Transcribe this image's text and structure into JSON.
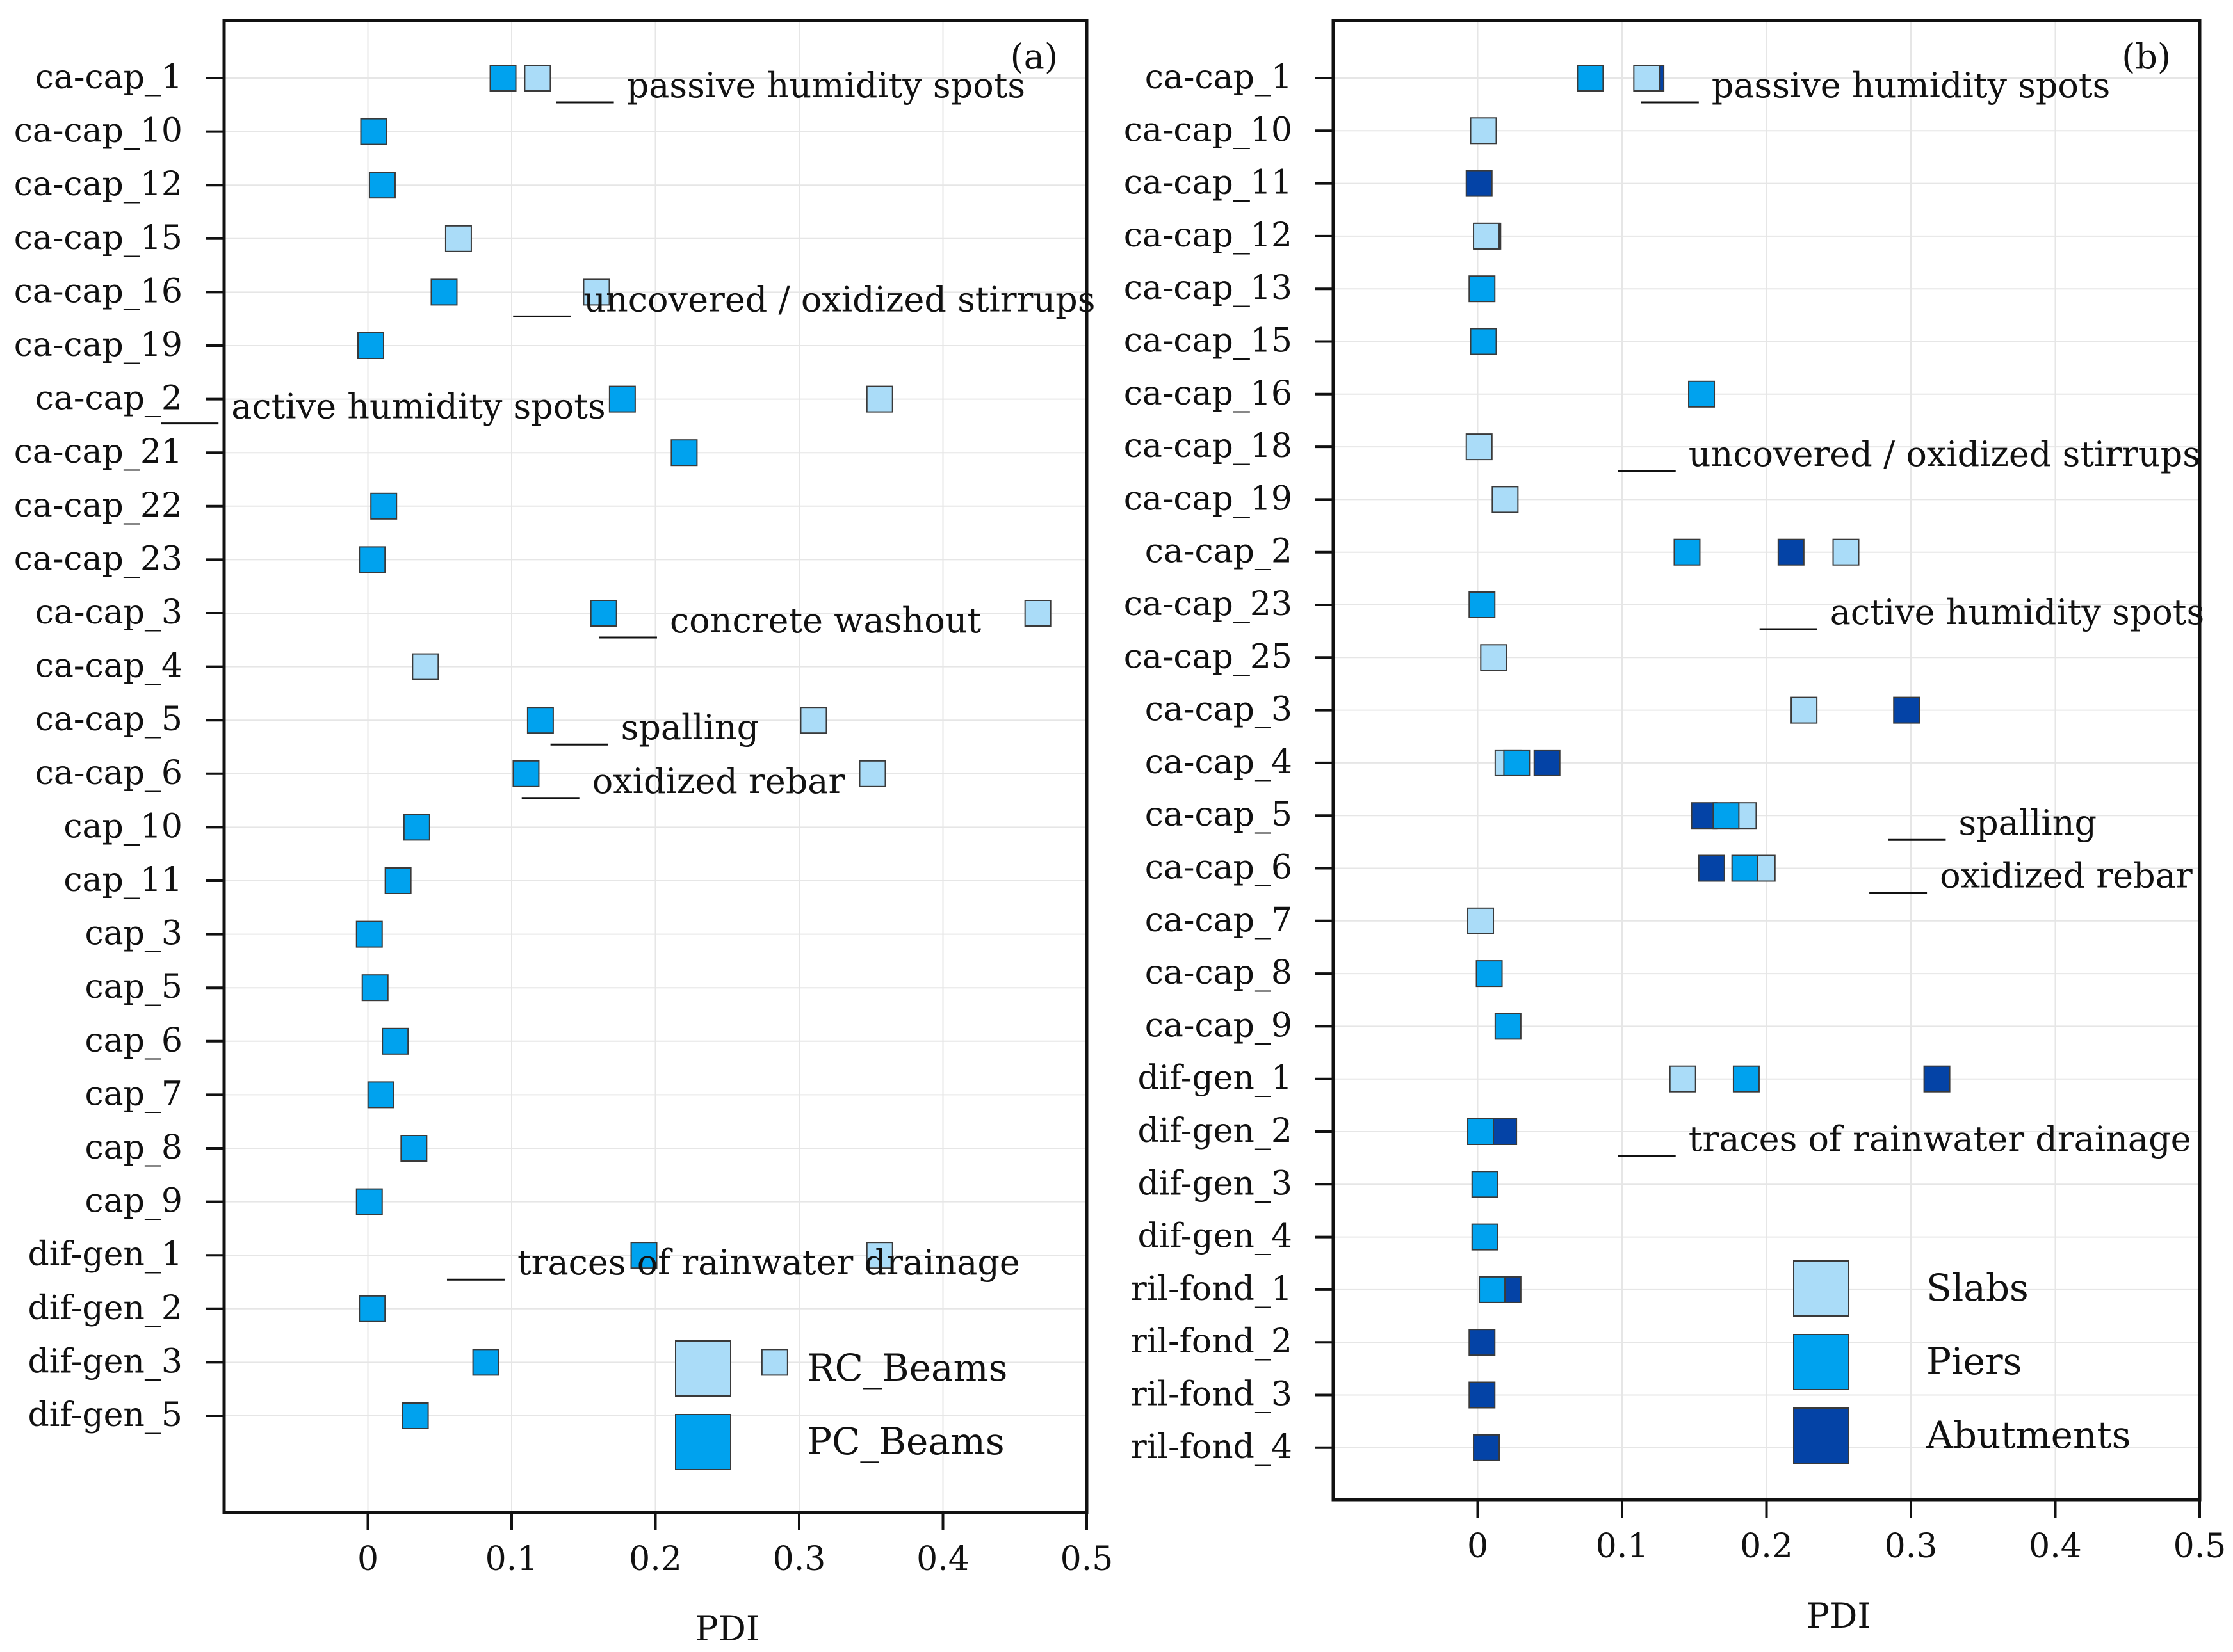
{
  "chart_data": [
    {
      "type": "scatter",
      "panel_label": "(a)",
      "title": "",
      "xlabel": "PDI",
      "ylabel": "",
      "xlim": [
        -0.1,
        0.5
      ],
      "x_ticks": [
        "0",
        "0.1",
        "0.2",
        "0.3",
        "0.4",
        "0.5"
      ],
      "x_tick_values": [
        0,
        0.1,
        0.2,
        0.3,
        0.4,
        0.5
      ],
      "grid": true,
      "legend_position": "bottom-right",
      "colors": {
        "RC_Beams": "#aadcf8",
        "PC_Beams": "#00a2ee"
      },
      "categories": [
        "ca-cap_1",
        "ca-cap_10",
        "ca-cap_12",
        "ca-cap_15",
        "ca-cap_16",
        "ca-cap_19",
        "ca-cap_2",
        "ca-cap_21",
        "ca-cap_22",
        "ca-cap_23",
        "ca-cap_3",
        "ca-cap_4",
        "ca-cap_5",
        "ca-cap_6",
        "cap_10",
        "cap_11",
        "cap_3",
        "cap_5",
        "cap_6",
        "cap_7",
        "cap_8",
        "cap_9",
        "dif-gen_1",
        "dif-gen_2",
        "dif-gen_3",
        "dif-gen_5"
      ],
      "series": [
        {
          "name": "RC_Beams",
          "points": [
            [
              0.118,
              "ca-cap_1"
            ],
            [
              0.063,
              "ca-cap_15"
            ],
            [
              0.159,
              "ca-cap_16"
            ],
            [
              0.356,
              "ca-cap_2"
            ],
            [
              0.466,
              "ca-cap_3"
            ],
            [
              0.04,
              "ca-cap_4"
            ],
            [
              0.31,
              "ca-cap_5"
            ],
            [
              0.351,
              "ca-cap_6"
            ],
            [
              0.356,
              "dif-gen_1"
            ],
            [
              0.283,
              "dif-gen_3"
            ]
          ]
        },
        {
          "name": "PC_Beams",
          "points": [
            [
              0.094,
              "ca-cap_1"
            ],
            [
              0.004,
              "ca-cap_10"
            ],
            [
              0.01,
              "ca-cap_12"
            ],
            [
              0.053,
              "ca-cap_16"
            ],
            [
              0.002,
              "ca-cap_19"
            ],
            [
              0.177,
              "ca-cap_2"
            ],
            [
              0.22,
              "ca-cap_21"
            ],
            [
              0.011,
              "ca-cap_22"
            ],
            [
              0.003,
              "ca-cap_23"
            ],
            [
              0.164,
              "ca-cap_3"
            ],
            [
              0.12,
              "ca-cap_5"
            ],
            [
              0.11,
              "ca-cap_6"
            ],
            [
              0.034,
              "cap_10"
            ],
            [
              0.021,
              "cap_11"
            ],
            [
              0.001,
              "cap_3"
            ],
            [
              0.005,
              "cap_5"
            ],
            [
              0.019,
              "cap_6"
            ],
            [
              0.009,
              "cap_7"
            ],
            [
              0.032,
              "cap_8"
            ],
            [
              0.001,
              "cap_9"
            ],
            [
              0.192,
              "dif-gen_1"
            ],
            [
              0.003,
              "dif-gen_2"
            ],
            [
              0.082,
              "dif-gen_3"
            ],
            [
              0.033,
              "dif-gen_5"
            ]
          ]
        }
      ],
      "annotations": [
        {
          "text": "passive humidity spots",
          "x": 0.18,
          "category": "ca-cap_1"
        },
        {
          "text": "uncovered / oxidized stirrups",
          "x": 0.15,
          "category": "ca-cap_16"
        },
        {
          "text": "active humidity spots",
          "x": -0.095,
          "category": "ca-cap_2"
        },
        {
          "text": "concrete washout",
          "x": 0.21,
          "category": "ca-cap_3"
        },
        {
          "text": "spalling",
          "x": 0.176,
          "category": "ca-cap_5"
        },
        {
          "text": "oxidized rebar",
          "x": 0.156,
          "category": "ca-cap_6"
        },
        {
          "text": "traces of rainwater drainage",
          "x": 0.104,
          "category": "dif-gen_1"
        }
      ]
    },
    {
      "type": "scatter",
      "panel_label": "(b)",
      "title": "",
      "xlabel": "PDI",
      "ylabel": "",
      "xlim": [
        -0.1,
        0.5
      ],
      "x_ticks": [
        "0",
        "0.1",
        "0.2",
        "0.3",
        "0.4",
        "0.5"
      ],
      "x_tick_values": [
        0,
        0.1,
        0.2,
        0.3,
        0.4,
        0.5
      ],
      "grid": true,
      "legend_position": "bottom-right",
      "colors": {
        "Slabs": "#aadcf8",
        "Piers": "#00a2ee",
        "Abutments": "#0443a6"
      },
      "categories": [
        "ca-cap_1",
        "ca-cap_10",
        "ca-cap_11",
        "ca-cap_12",
        "ca-cap_13",
        "ca-cap_15",
        "ca-cap_16",
        "ca-cap_18",
        "ca-cap_19",
        "ca-cap_2",
        "ca-cap_23",
        "ca-cap_25",
        "ca-cap_3",
        "ca-cap_4",
        "ca-cap_5",
        "ca-cap_6",
        "ca-cap_7",
        "ca-cap_8",
        "ca-cap_9",
        "dif-gen_1",
        "dif-gen_2",
        "dif-gen_3",
        "dif-gen_4",
        "ril-fond_1",
        "ril-fond_2",
        "ril-fond_3",
        "ril-fond_4"
      ],
      "series": [
        {
          "name": "Abutments",
          "points": [
            [
              0.12,
              "ca-cap_1"
            ],
            [
              0.001,
              "ca-cap_11"
            ],
            [
              0.007,
              "ca-cap_12"
            ],
            [
              0.217,
              "ca-cap_2"
            ],
            [
              0.297,
              "ca-cap_3"
            ],
            [
              0.048,
              "ca-cap_4"
            ],
            [
              0.157,
              "ca-cap_5"
            ],
            [
              0.162,
              "ca-cap_6"
            ],
            [
              0.318,
              "dif-gen_1"
            ],
            [
              0.018,
              "dif-gen_2"
            ],
            [
              0.021,
              "ril-fond_1"
            ],
            [
              0.003,
              "ril-fond_2"
            ],
            [
              0.003,
              "ril-fond_3"
            ],
            [
              0.006,
              "ril-fond_4"
            ]
          ]
        },
        {
          "name": "Slabs",
          "points": [
            [
              0.117,
              "ca-cap_1"
            ],
            [
              0.004,
              "ca-cap_10"
            ],
            [
              0.006,
              "ca-cap_12"
            ],
            [
              0.001,
              "ca-cap_18"
            ],
            [
              0.019,
              "ca-cap_19"
            ],
            [
              0.255,
              "ca-cap_2"
            ],
            [
              0.011,
              "ca-cap_25"
            ],
            [
              0.226,
              "ca-cap_3"
            ],
            [
              0.021,
              "ca-cap_4"
            ],
            [
              0.184,
              "ca-cap_5"
            ],
            [
              0.197,
              "ca-cap_6"
            ],
            [
              0.002,
              "ca-cap_7"
            ],
            [
              0.142,
              "dif-gen_1"
            ]
          ]
        },
        {
          "name": "Piers",
          "points": [
            [
              0.078,
              "ca-cap_1"
            ],
            [
              0.003,
              "ca-cap_13"
            ],
            [
              0.004,
              "ca-cap_15"
            ],
            [
              0.155,
              "ca-cap_16"
            ],
            [
              0.145,
              "ca-cap_2"
            ],
            [
              0.003,
              "ca-cap_23"
            ],
            [
              0.027,
              "ca-cap_4"
            ],
            [
              0.172,
              "ca-cap_5"
            ],
            [
              0.185,
              "ca-cap_6"
            ],
            [
              0.008,
              "ca-cap_8"
            ],
            [
              0.021,
              "ca-cap_9"
            ],
            [
              0.186,
              "dif-gen_1"
            ],
            [
              0.002,
              "dif-gen_2"
            ],
            [
              0.005,
              "dif-gen_3"
            ],
            [
              0.005,
              "dif-gen_4"
            ],
            [
              0.01,
              "ril-fond_1"
            ]
          ]
        }
      ],
      "annotations": [
        {
          "text": "passive humidity spots",
          "x": 0.162,
          "category": "ca-cap_1"
        },
        {
          "text": "uncovered / oxidized stirrups",
          "x": 0.146,
          "category": "ca-cap_18"
        },
        {
          "text": "active humidity spots",
          "x": 0.244,
          "category": "ca-cap_23"
        },
        {
          "text": "spalling",
          "x": 0.333,
          "category": "ca-cap_5"
        },
        {
          "text": "oxidized rebar",
          "x": 0.32,
          "category": "ca-cap_6"
        },
        {
          "text": "traces of rainwater drainage",
          "x": 0.146,
          "category": "dif-gen_2"
        }
      ]
    }
  ]
}
